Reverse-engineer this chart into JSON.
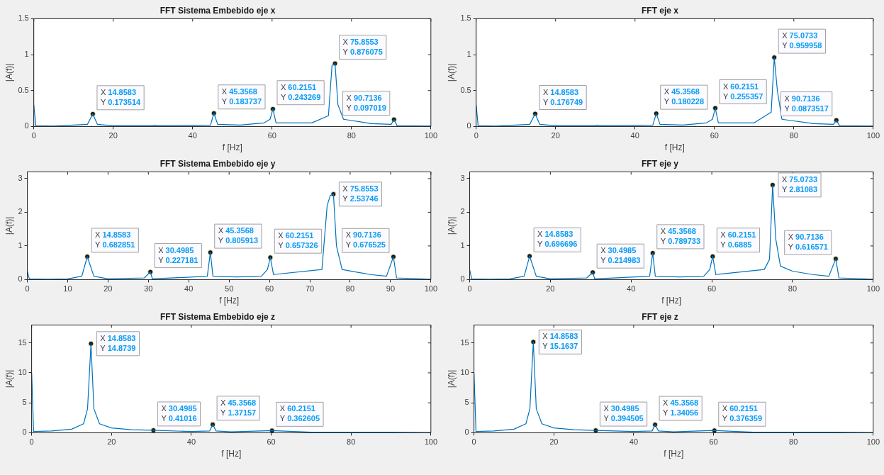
{
  "chart_data": [
    {
      "type": "line",
      "title": "FFT Sistema Embebido eje x",
      "xlabel": "f [Hz]",
      "ylabel": "|A(f)|",
      "xlim": [
        0,
        100
      ],
      "xticks": [
        0,
        20,
        40,
        60,
        80,
        100
      ],
      "ylim": [
        0,
        1.5
      ],
      "yticks": [
        0,
        0.5,
        1,
        1.5
      ],
      "grid": false,
      "legend": false,
      "series": [
        {
          "type": "line",
          "color": "#0072bd",
          "x": [
            0,
            0.5,
            5,
            13.5,
            14.8583,
            16,
            20,
            30,
            30.5,
            31,
            44.5,
            45.3568,
            46.3,
            52,
            58,
            59.5,
            60.2151,
            61,
            70,
            74.2,
            75.1,
            75.8553,
            76.6,
            78,
            85,
            90,
            90.7136,
            91.5,
            100
          ],
          "values": [
            0.3,
            0.01,
            0.005,
            0.03,
            0.173514,
            0.03,
            0.01,
            0.01,
            0.02,
            0.01,
            0.02,
            0.183737,
            0.03,
            0.02,
            0.05,
            0.1,
            0.243269,
            0.05,
            0.05,
            0.15,
            0.85,
            0.876075,
            0.3,
            0.1,
            0.04,
            0.03,
            0.097019,
            0.01,
            0.005
          ]
        },
        {
          "type": "scatter",
          "marker": "circle",
          "color": "#1a1a1a",
          "x": [
            14.8583,
            45.3568,
            60.2151,
            75.8553,
            90.7136
          ],
          "values": [
            0.173514,
            0.183737,
            0.243269,
            0.876075,
            0.097019
          ]
        }
      ],
      "annotations": [
        {
          "text": "X 14.8583\nY 0.173514",
          "x": 14.8583,
          "y": 0.173514
        },
        {
          "text": "X 45.3568\nY 0.183737",
          "x": 45.3568,
          "y": 0.183737
        },
        {
          "text": "X 60.2151\nY 0.243269",
          "x": 60.2151,
          "y": 0.243269
        },
        {
          "text": "X 75.8553\nY 0.876075",
          "x": 75.8553,
          "y": 0.876075
        },
        {
          "text": "X 90.7136\nY 0.097019",
          "x": 90.7136,
          "y": 0.097019
        }
      ]
    },
    {
      "type": "line",
      "title": "FFT eje x",
      "xlabel": "f [Hz]",
      "ylabel": "|A(f)|",
      "xlim": [
        0,
        100
      ],
      "xticks": [
        0,
        20,
        40,
        60,
        80,
        100
      ],
      "ylim": [
        0,
        1.5
      ],
      "yticks": [
        0,
        0.5,
        1,
        1.5
      ],
      "grid": false,
      "legend": false,
      "series": [
        {
          "type": "line",
          "color": "#0072bd",
          "x": [
            0,
            0.5,
            5,
            13.5,
            14.8583,
            16,
            20,
            30,
            30.5,
            31,
            44.5,
            45.3568,
            46.3,
            52,
            58,
            59.5,
            60.2151,
            61,
            70,
            74.3,
            75.0733,
            75.8553,
            77,
            85,
            90,
            90.7136,
            91.5,
            100
          ],
          "values": [
            0.3,
            0.01,
            0.005,
            0.03,
            0.176749,
            0.03,
            0.01,
            0.01,
            0.02,
            0.01,
            0.02,
            0.180228,
            0.03,
            0.02,
            0.05,
            0.1,
            0.255357,
            0.05,
            0.05,
            0.2,
            0.959958,
            0.5,
            0.1,
            0.04,
            0.03,
            0.0873517,
            0.01,
            0.005
          ]
        },
        {
          "type": "scatter",
          "marker": "circle",
          "color": "#1a1a1a",
          "x": [
            14.8583,
            45.3568,
            60.2151,
            75.0733,
            90.7136
          ],
          "values": [
            0.176749,
            0.180228,
            0.255357,
            0.959958,
            0.0873517
          ]
        }
      ],
      "annotations": [
        {
          "text": "X 14.8583\nY 0.176749",
          "x": 14.8583,
          "y": 0.176749
        },
        {
          "text": "X 45.3568\nY 0.180228",
          "x": 45.3568,
          "y": 0.180228
        },
        {
          "text": "X 60.2151\nY 0.255357",
          "x": 60.2151,
          "y": 0.255357
        },
        {
          "text": "X 75.0733\nY 0.959958",
          "x": 75.0733,
          "y": 0.959958
        },
        {
          "text": "X 90.7136\nY 0.0873517",
          "x": 90.7136,
          "y": 0.0873517
        }
      ]
    },
    {
      "type": "line",
      "title": "FFT Sistema Embebido eje y",
      "xlabel": "f [Hz]",
      "ylabel": "|A(f)|",
      "xlim": [
        0,
        100
      ],
      "xticks": [
        0,
        10,
        20,
        30,
        40,
        50,
        60,
        70,
        80,
        90,
        100
      ],
      "ylim": [
        0,
        3.2
      ],
      "yticks": [
        0,
        1,
        2,
        3
      ],
      "grid": false,
      "legend": false,
      "series": [
        {
          "type": "line",
          "color": "#0072bd",
          "x": [
            0,
            0.5,
            5,
            10,
            13.5,
            14.8583,
            16.5,
            20,
            29,
            30.4985,
            31,
            44.6,
            45.3568,
            46,
            52,
            58,
            59.5,
            60.2151,
            61,
            73,
            74.3,
            75.0733,
            75.8553,
            76.6,
            78,
            85,
            89,
            90.7136,
            91.5,
            100
          ],
          "values": [
            0.25,
            0.02,
            0.01,
            0.02,
            0.1,
            0.682851,
            0.1,
            0.02,
            0.05,
            0.227181,
            0.02,
            0.1,
            0.805913,
            0.1,
            0.08,
            0.1,
            0.3,
            0.657326,
            0.15,
            0.3,
            2.2,
            2.5,
            2.53746,
            1.0,
            0.3,
            0.15,
            0.1,
            0.676525,
            0.05,
            0.01
          ]
        },
        {
          "type": "scatter",
          "marker": "circle",
          "color": "#1a1a1a",
          "x": [
            14.8583,
            30.4985,
            45.3568,
            60.2151,
            75.8553,
            90.7136
          ],
          "values": [
            0.682851,
            0.227181,
            0.805913,
            0.657326,
            2.53746,
            0.676525
          ]
        }
      ],
      "annotations": [
        {
          "text": "X 14.8583\nY 0.682851",
          "x": 14.8583,
          "y": 0.682851
        },
        {
          "text": "X 30.4985\nY 0.227181",
          "x": 30.4985,
          "y": 0.227181
        },
        {
          "text": "X 45.3568\nY 0.805913",
          "x": 45.3568,
          "y": 0.805913
        },
        {
          "text": "X 60.2151\nY 0.657326",
          "x": 60.2151,
          "y": 0.657326
        },
        {
          "text": "X 75.8553\nY 2.53746",
          "x": 75.8553,
          "y": 2.53746
        },
        {
          "text": "X 90.7136\nY 0.676525",
          "x": 90.7136,
          "y": 0.676525
        }
      ]
    },
    {
      "type": "line",
      "title": "FFT eje y",
      "xlabel": "f [Hz]",
      "ylabel": "|A(f)|",
      "xlim": [
        0,
        100
      ],
      "xticks": [
        0,
        20,
        40,
        60,
        80,
        100
      ],
      "ylim": [
        0,
        3.2
      ],
      "yticks": [
        0,
        1,
        2,
        3
      ],
      "grid": false,
      "legend": false,
      "series": [
        {
          "type": "line",
          "color": "#0072bd",
          "x": [
            0,
            0.5,
            5,
            10,
            13.5,
            14.8583,
            16.5,
            20,
            29,
            30.4985,
            31,
            44.6,
            45.3568,
            46,
            52,
            58,
            59.5,
            60.2151,
            61,
            73,
            74.3,
            75.0733,
            75.8553,
            77,
            80,
            85,
            89,
            90.7136,
            91.5,
            100
          ],
          "values": [
            0.3,
            0.02,
            0.01,
            0.02,
            0.1,
            0.696696,
            0.1,
            0.02,
            0.05,
            0.214983,
            0.02,
            0.1,
            0.789733,
            0.1,
            0.08,
            0.1,
            0.3,
            0.6885,
            0.15,
            0.3,
            0.6,
            2.81083,
            1.2,
            0.4,
            0.25,
            0.15,
            0.1,
            0.616571,
            0.05,
            0.01
          ]
        },
        {
          "type": "scatter",
          "marker": "circle",
          "color": "#1a1a1a",
          "x": [
            14.8583,
            30.4985,
            45.3568,
            60.2151,
            75.0733,
            90.7136
          ],
          "values": [
            0.696696,
            0.214983,
            0.789733,
            0.6885,
            2.81083,
            0.616571
          ]
        }
      ],
      "annotations": [
        {
          "text": "X 14.8583\nY 0.696696",
          "x": 14.8583,
          "y": 0.696696
        },
        {
          "text": "X 30.4985\nY 0.214983",
          "x": 30.4985,
          "y": 0.214983
        },
        {
          "text": "X 45.3568\nY 0.789733",
          "x": 45.3568,
          "y": 0.789733
        },
        {
          "text": "X 60.2151\nY 0.6885",
          "x": 60.2151,
          "y": 0.6885
        },
        {
          "text": "X 75.0733\nY 2.81083",
          "x": 75.0733,
          "y": 2.81083
        },
        {
          "text": "X 90.7136\nY 0.616571",
          "x": 90.7136,
          "y": 0.616571
        }
      ]
    },
    {
      "type": "line",
      "title": "FFT Sistema Embebido eje z",
      "xlabel": "f [Hz]",
      "ylabel": "|A(f)|",
      "xlim": [
        0,
        100
      ],
      "xticks": [
        0,
        20,
        40,
        60,
        80,
        100
      ],
      "ylim": [
        0,
        18
      ],
      "yticks": [
        0,
        5,
        10,
        15
      ],
      "grid": false,
      "legend": false,
      "series": [
        {
          "type": "line",
          "color": "#0072bd",
          "x": [
            0,
            0.5,
            5,
            10,
            13,
            14,
            14.8583,
            15.6,
            17,
            20,
            25,
            30.4985,
            40,
            44.6,
            45.3568,
            46.2,
            50,
            60.2151,
            70,
            90,
            100
          ],
          "values": [
            10,
            0.2,
            0.3,
            0.6,
            1.5,
            4,
            14.8739,
            4,
            1.5,
            0.8,
            0.5,
            0.41016,
            0.2,
            0.3,
            1.37157,
            0.3,
            0.15,
            0.362605,
            0.1,
            0.1,
            0.05
          ]
        },
        {
          "type": "scatter",
          "marker": "circle",
          "color": "#1a1a1a",
          "x": [
            14.8583,
            30.4985,
            45.3568,
            60.2151
          ],
          "values": [
            14.8739,
            0.41016,
            1.37157,
            0.362605
          ]
        }
      ],
      "annotations": [
        {
          "text": "X 14.8583\nY 14.8739",
          "x": 14.8583,
          "y": 14.8739
        },
        {
          "text": "X 30.4985\nY 0.41016",
          "x": 30.4985,
          "y": 0.41016
        },
        {
          "text": "X 45.3568\nY 1.37157",
          "x": 45.3568,
          "y": 1.37157
        },
        {
          "text": "X 60.2151\nY 0.362605",
          "x": 60.2151,
          "y": 0.362605
        }
      ]
    },
    {
      "type": "line",
      "title": "FFT eje z",
      "xlabel": "f [Hz]",
      "ylabel": "|A(f)|",
      "xlim": [
        0,
        100
      ],
      "xticks": [
        0,
        20,
        40,
        60,
        80,
        100
      ],
      "ylim": [
        0,
        18
      ],
      "yticks": [
        0,
        5,
        10,
        15
      ],
      "grid": false,
      "legend": false,
      "series": [
        {
          "type": "line",
          "color": "#0072bd",
          "x": [
            0,
            0.5,
            5,
            10,
            13,
            14,
            14.8583,
            15.6,
            17,
            20,
            25,
            30.4985,
            40,
            44.6,
            45.3568,
            46.2,
            50,
            60.2151,
            70,
            90,
            100
          ],
          "values": [
            10,
            0.2,
            0.3,
            0.6,
            1.5,
            4,
            15.1637,
            4,
            1.5,
            0.8,
            0.5,
            0.394505,
            0.2,
            0.3,
            1.34056,
            0.3,
            0.15,
            0.376359,
            0.1,
            0.1,
            0.05
          ]
        },
        {
          "type": "scatter",
          "marker": "circle",
          "color": "#1a1a1a",
          "x": [
            14.8583,
            30.4985,
            45.3568,
            60.2151
          ],
          "values": [
            15.1637,
            0.394505,
            1.34056,
            0.376359
          ]
        }
      ],
      "annotations": [
        {
          "text": "X 14.8583\nY 15.1637",
          "x": 14.8583,
          "y": 15.1637
        },
        {
          "text": "X 30.4985\nY 0.394505",
          "x": 30.4985,
          "y": 0.394505
        },
        {
          "text": "X 45.3568\nY 1.34056",
          "x": 45.3568,
          "y": 1.34056
        },
        {
          "text": "X 60.2151\nY 0.376359",
          "x": 60.2151,
          "y": 0.376359
        }
      ]
    }
  ]
}
